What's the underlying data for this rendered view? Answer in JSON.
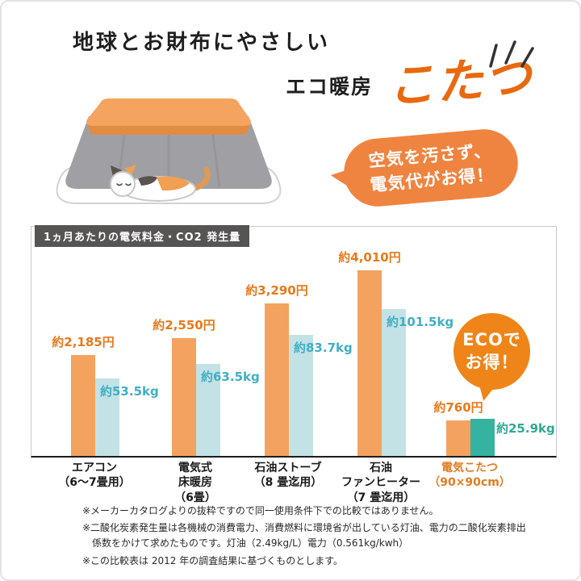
{
  "header": {
    "title": "地球とお財布にやさしい",
    "subtitle_prefix": "エコ暖房",
    "subtitle_main": "こたつ"
  },
  "speech_bubble": {
    "line1": "空気を汚さず、",
    "line2": "電気代がお得！",
    "color": "#ef8440"
  },
  "eco_badge": {
    "line1": "ECOで",
    "line2": "お得！",
    "color": "#ef8519"
  },
  "accent_color": "#e8690f",
  "chart_data": {
    "type": "bar",
    "title": "1ヵ月あたりの電気料金・CO2 発生量",
    "categories": [
      {
        "lines": [
          "エアコン",
          "（6～7畳用）"
        ]
      },
      {
        "lines": [
          "電気式",
          "床暖房",
          "（6畳）"
        ]
      },
      {
        "lines": [
          "石油ストーブ",
          "（8 畳迄用）"
        ]
      },
      {
        "lines": [
          "石油",
          "ファンヒーター",
          "（7 畳迄用）"
        ]
      },
      {
        "lines": [
          "電気こたつ",
          "（90×90cm）"
        ]
      }
    ],
    "series": [
      {
        "name": "電気料金（円）",
        "color": "#f3a35f",
        "label_color": "#e8791a",
        "values": [
          2185,
          2550,
          3290,
          4010,
          760
        ],
        "labels": [
          "約2,185円",
          "約2,550円",
          "約3,290円",
          "約4,010円",
          "約760円"
        ]
      },
      {
        "name": "CO2発生量（kg）",
        "color": "#c3e2e6",
        "label_color": "#3fafc4",
        "highlight_index": 4,
        "highlight_color": "#35b2a0",
        "highlight_label_color": "#2ea893",
        "values": [
          53.5,
          63.5,
          83.7,
          101.5,
          25.9
        ],
        "labels": [
          "約53.5kg",
          "約63.5kg",
          "約83.7kg",
          "約101.5kg",
          "約25.9kg"
        ]
      }
    ],
    "highlight_category_color": "#e07c22",
    "ylim_price": [
      0,
      4010
    ],
    "ylim_co2": [
      0,
      101.5
    ],
    "legend": "none",
    "grid": false
  },
  "footnotes": [
    "※メーカーカタログよりの抜粋ですので同一使用条件下での比較ではありません。",
    "※二酸化炭素発生量は各機械の消費電力、消費燃料に環境省が出している灯油、電力の二酸化炭素排出係数をかけて求めたものです。灯油（2.49kg/L）電力（0.561kg/kwh）",
    "※この比較表は 2012 年の調査結果に基づくものとします。"
  ]
}
